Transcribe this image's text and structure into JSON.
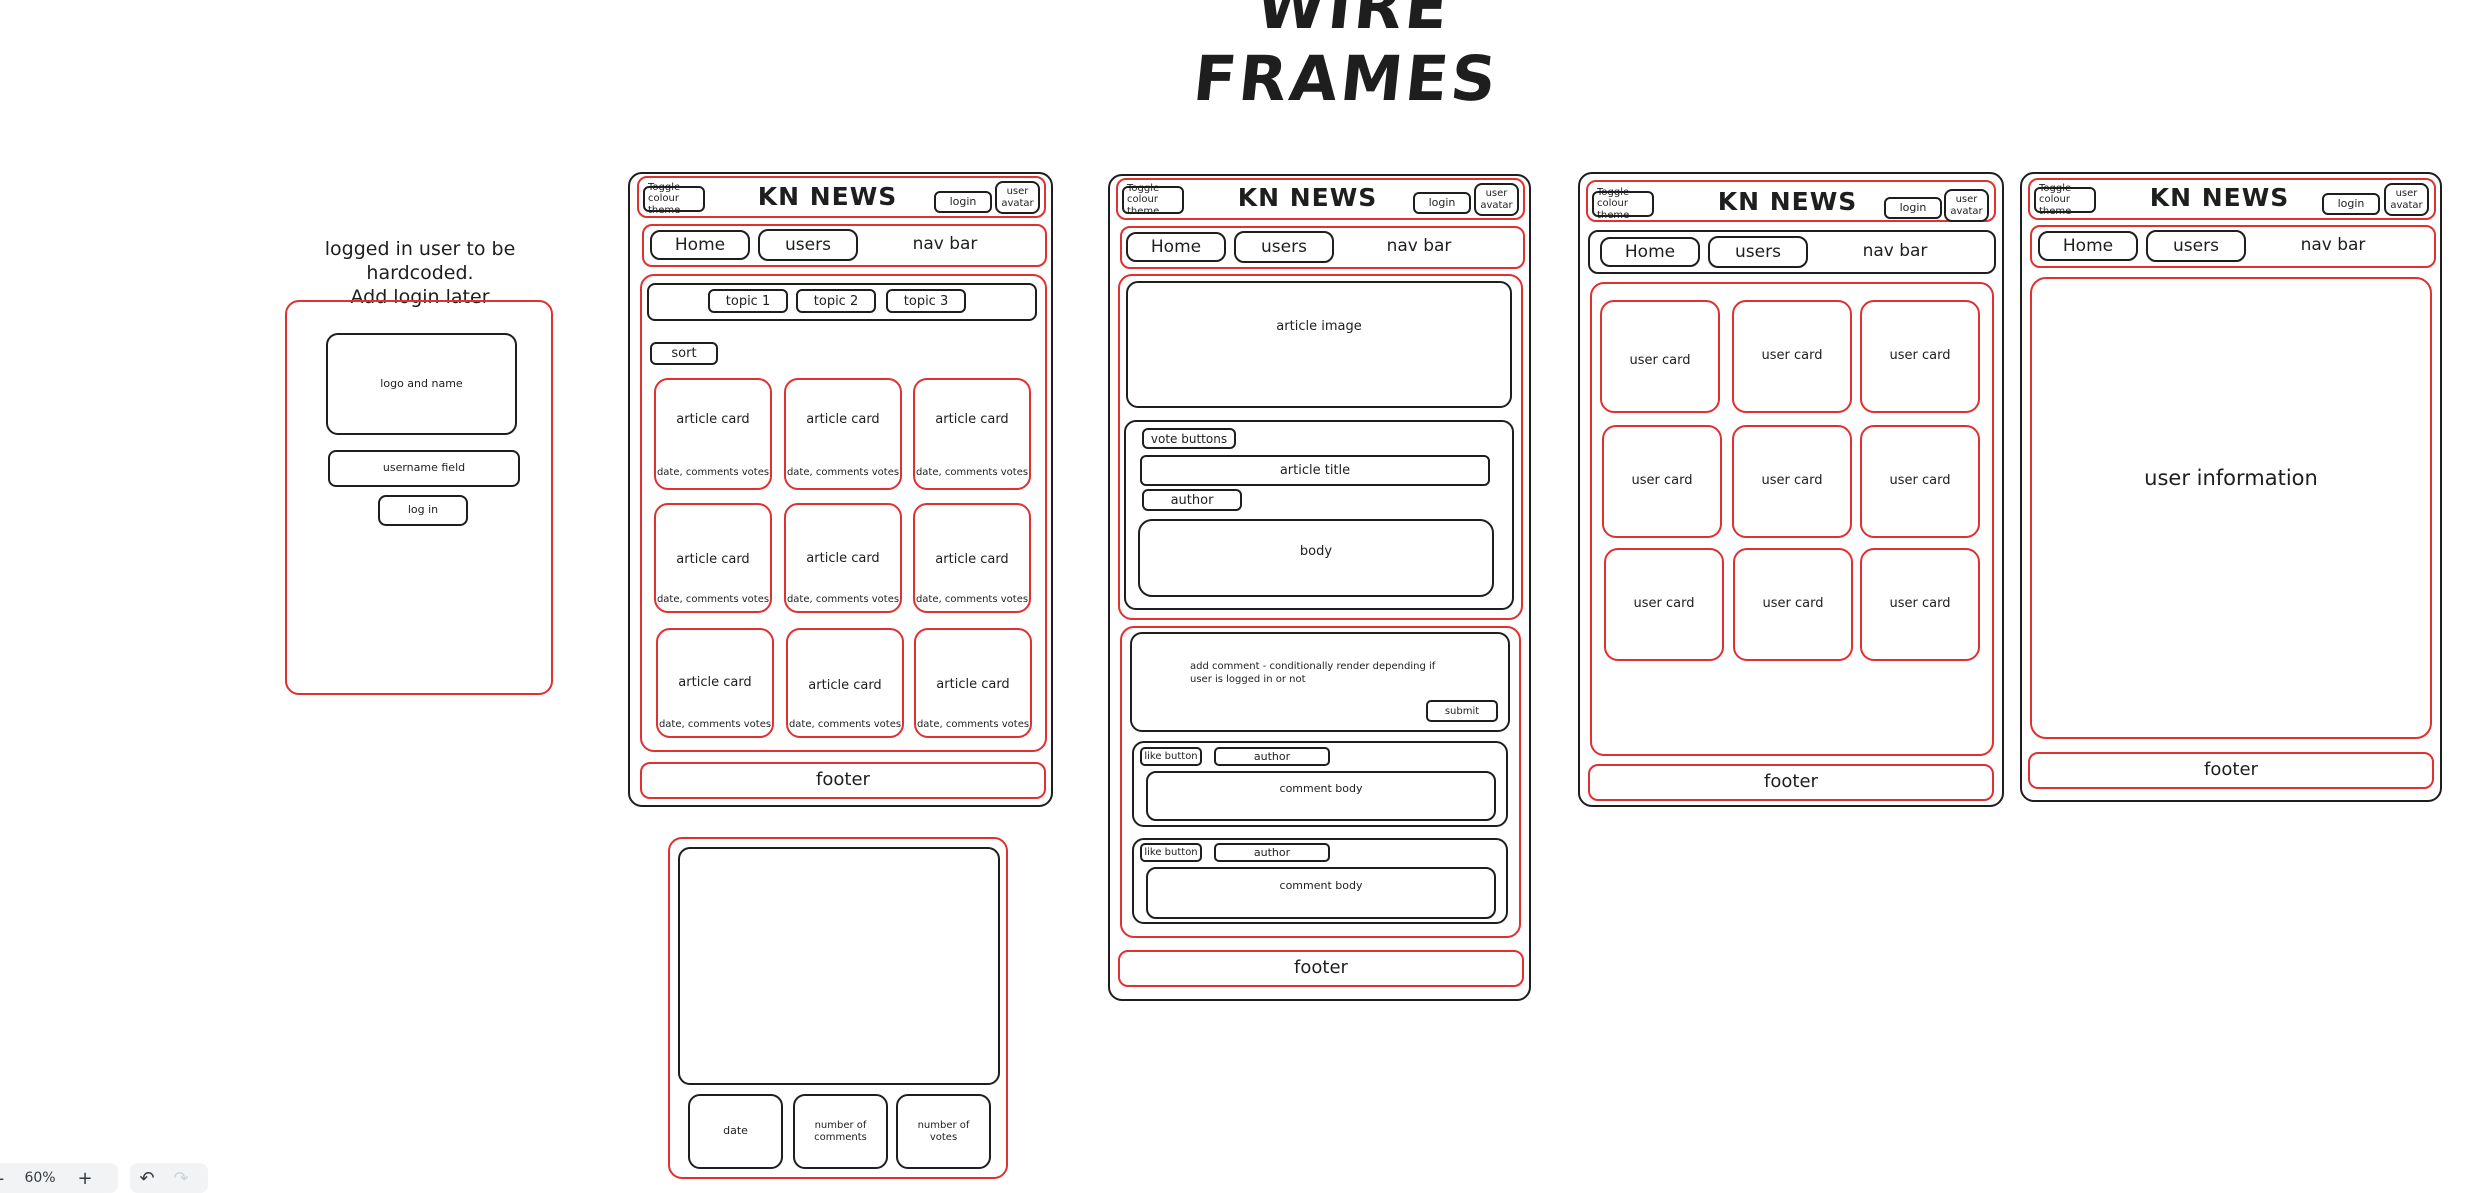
{
  "page_title": "WIRE FRAMES",
  "note": {
    "line1": "logged in user to be hardcoded.",
    "line2": "Add login later"
  },
  "login_frame": {
    "logo": "logo and name",
    "username": "username field",
    "login_button": "log in"
  },
  "header": {
    "toggle": "Toggle colour theme",
    "brand": "KN NEWS",
    "login": "login",
    "avatar": "user avatar"
  },
  "nav": {
    "home": "Home",
    "users": "users",
    "label": "nav bar"
  },
  "footer": "footer",
  "home_frame": {
    "topics": [
      "topic 1",
      "topic 2",
      "topic 3"
    ],
    "sort": "sort",
    "card_title": "article card",
    "card_meta": "date, comments votes"
  },
  "card_detail": {
    "date": "date",
    "comments": "number of comments",
    "votes": "number of votes"
  },
  "article_frame": {
    "image": "article image",
    "vote_buttons": "vote buttons",
    "title": "article title",
    "author": "author",
    "body": "body",
    "add_comment": "add comment - conditionally render depending if user is logged in or not",
    "submit": "submit",
    "like_button": "like button",
    "comment_author": "author",
    "comment_body": "comment body"
  },
  "users_frame": {
    "card": "user card"
  },
  "user_frame": {
    "info": "user information"
  },
  "toolbar": {
    "minus": "-",
    "zoom": "60%",
    "plus": "+",
    "undo": "↶",
    "redo": "↷"
  }
}
